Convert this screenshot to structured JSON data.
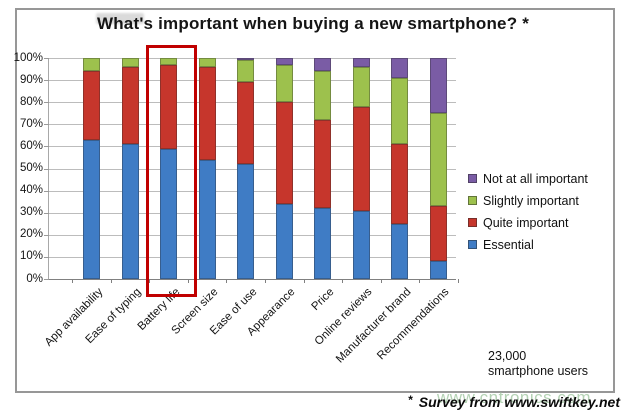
{
  "title": "What's important when buying a new smartphone? *",
  "annotation": {
    "line1": "23,000",
    "line2": "smartphone users"
  },
  "footnote": {
    "marker": "*",
    "text": "Survey from www.swiftkey.net"
  },
  "watermark": "www.cntronics.com",
  "colors": {
    "highlight_box": "#c00000",
    "grid": "#bcbcbc",
    "axis": "#808080"
  },
  "chart_data": {
    "type": "bar",
    "stacked": true,
    "title": "What's important when buying a new smartphone? *",
    "categories": [
      "App availability",
      "Ease of typing",
      "Battery life",
      "Screen size",
      "Ease of use",
      "Appearance",
      "Price",
      "Online reviews",
      "Manufacturer brand",
      "Recommendations"
    ],
    "series": [
      {
        "name": "Essential",
        "color": "#3f7cc5",
        "values": [
          63,
          61,
          59,
          54,
          52,
          34,
          32,
          31,
          25,
          8
        ]
      },
      {
        "name": "Quite important",
        "color": "#c6362c",
        "values": [
          31,
          35,
          38,
          42,
          37,
          46,
          40,
          47,
          36,
          25
        ]
      },
      {
        "name": "Slightly important",
        "color": "#9dc14d",
        "values": [
          6,
          4,
          3,
          4,
          10,
          17,
          22,
          18,
          30,
          42
        ]
      },
      {
        "name": "Not at all important",
        "color": "#7a5ca5",
        "values": [
          0,
          0,
          0,
          0,
          1,
          3,
          6,
          4,
          9,
          25
        ]
      }
    ],
    "ylim": [
      0,
      100
    ],
    "yticks": [
      "0%",
      "10%",
      "20%",
      "30%",
      "40%",
      "50%",
      "60%",
      "70%",
      "80%",
      "90%",
      "100%"
    ],
    "grid": true,
    "legend_position": "right",
    "legend_order": [
      "Not at all important",
      "Slightly important",
      "Quite important",
      "Essential"
    ],
    "highlighted_category": "Battery life",
    "annotation": "23,000 smartphone users",
    "footnote": "* Survey from www.swiftkey.net"
  }
}
